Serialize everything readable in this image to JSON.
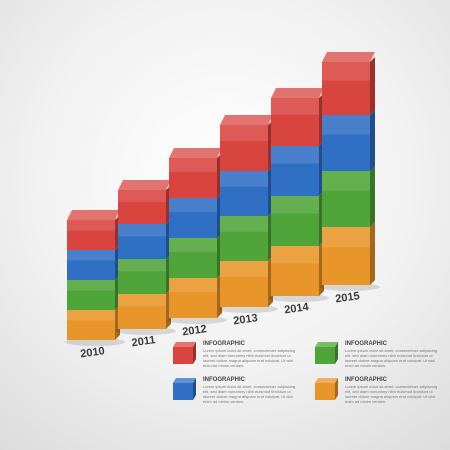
{
  "chart_data": {
    "type": "stacked-cube-bar",
    "categories": [
      "2010",
      "2011",
      "2012",
      "2013",
      "2014",
      "2015"
    ],
    "series": [
      {
        "name": "INFOGRAPHIC",
        "color": "#e8962a",
        "values": [
          30,
          35,
          40,
          46,
          50,
          58
        ]
      },
      {
        "name": "INFOGRAPHIC",
        "color": "#4fa53a",
        "values": [
          30,
          35,
          40,
          45,
          50,
          56
        ]
      },
      {
        "name": "INFOGRAPHIC",
        "color": "#2f6fc4",
        "values": [
          30,
          35,
          40,
          45,
          50,
          56
        ]
      },
      {
        "name": "INFOGRAPHIC",
        "color": "#d9443f",
        "values": [
          30,
          34,
          40,
          46,
          48,
          53
        ]
      }
    ],
    "legend_texts": [
      "Lorem ipsum dolor sit amet, consectetuer adipiscing elit, sed diam nonummy nibh euismod tincidunt ut laoreet dolore magna aliquam erat volutpat. Ut wisi enim ad minim veniam.",
      "Lorem ipsum dolor sit amet, consectetuer adipiscing elit, sed diam nonummy nibh euismod tincidunt ut laoreet dolore magna aliquam erat volutpat. Ut wisi enim ad minim veniam.",
      "Lorem ipsum dolor sit amet, consectetuer adipiscing elit, sed diam nonummy nibh euismod tincidunt ut laoreet dolore magna aliquam erat volutpat. Ut wisi enim ad minim veniam.",
      "Lorem ipsum dolor sit amet, consectetuer adipiscing elit, sed diam nonummy nibh euismod tincidunt ut laoreet dolore magna aliquam erat volutpat. Ut wisi enim ad minim veniam."
    ]
  }
}
